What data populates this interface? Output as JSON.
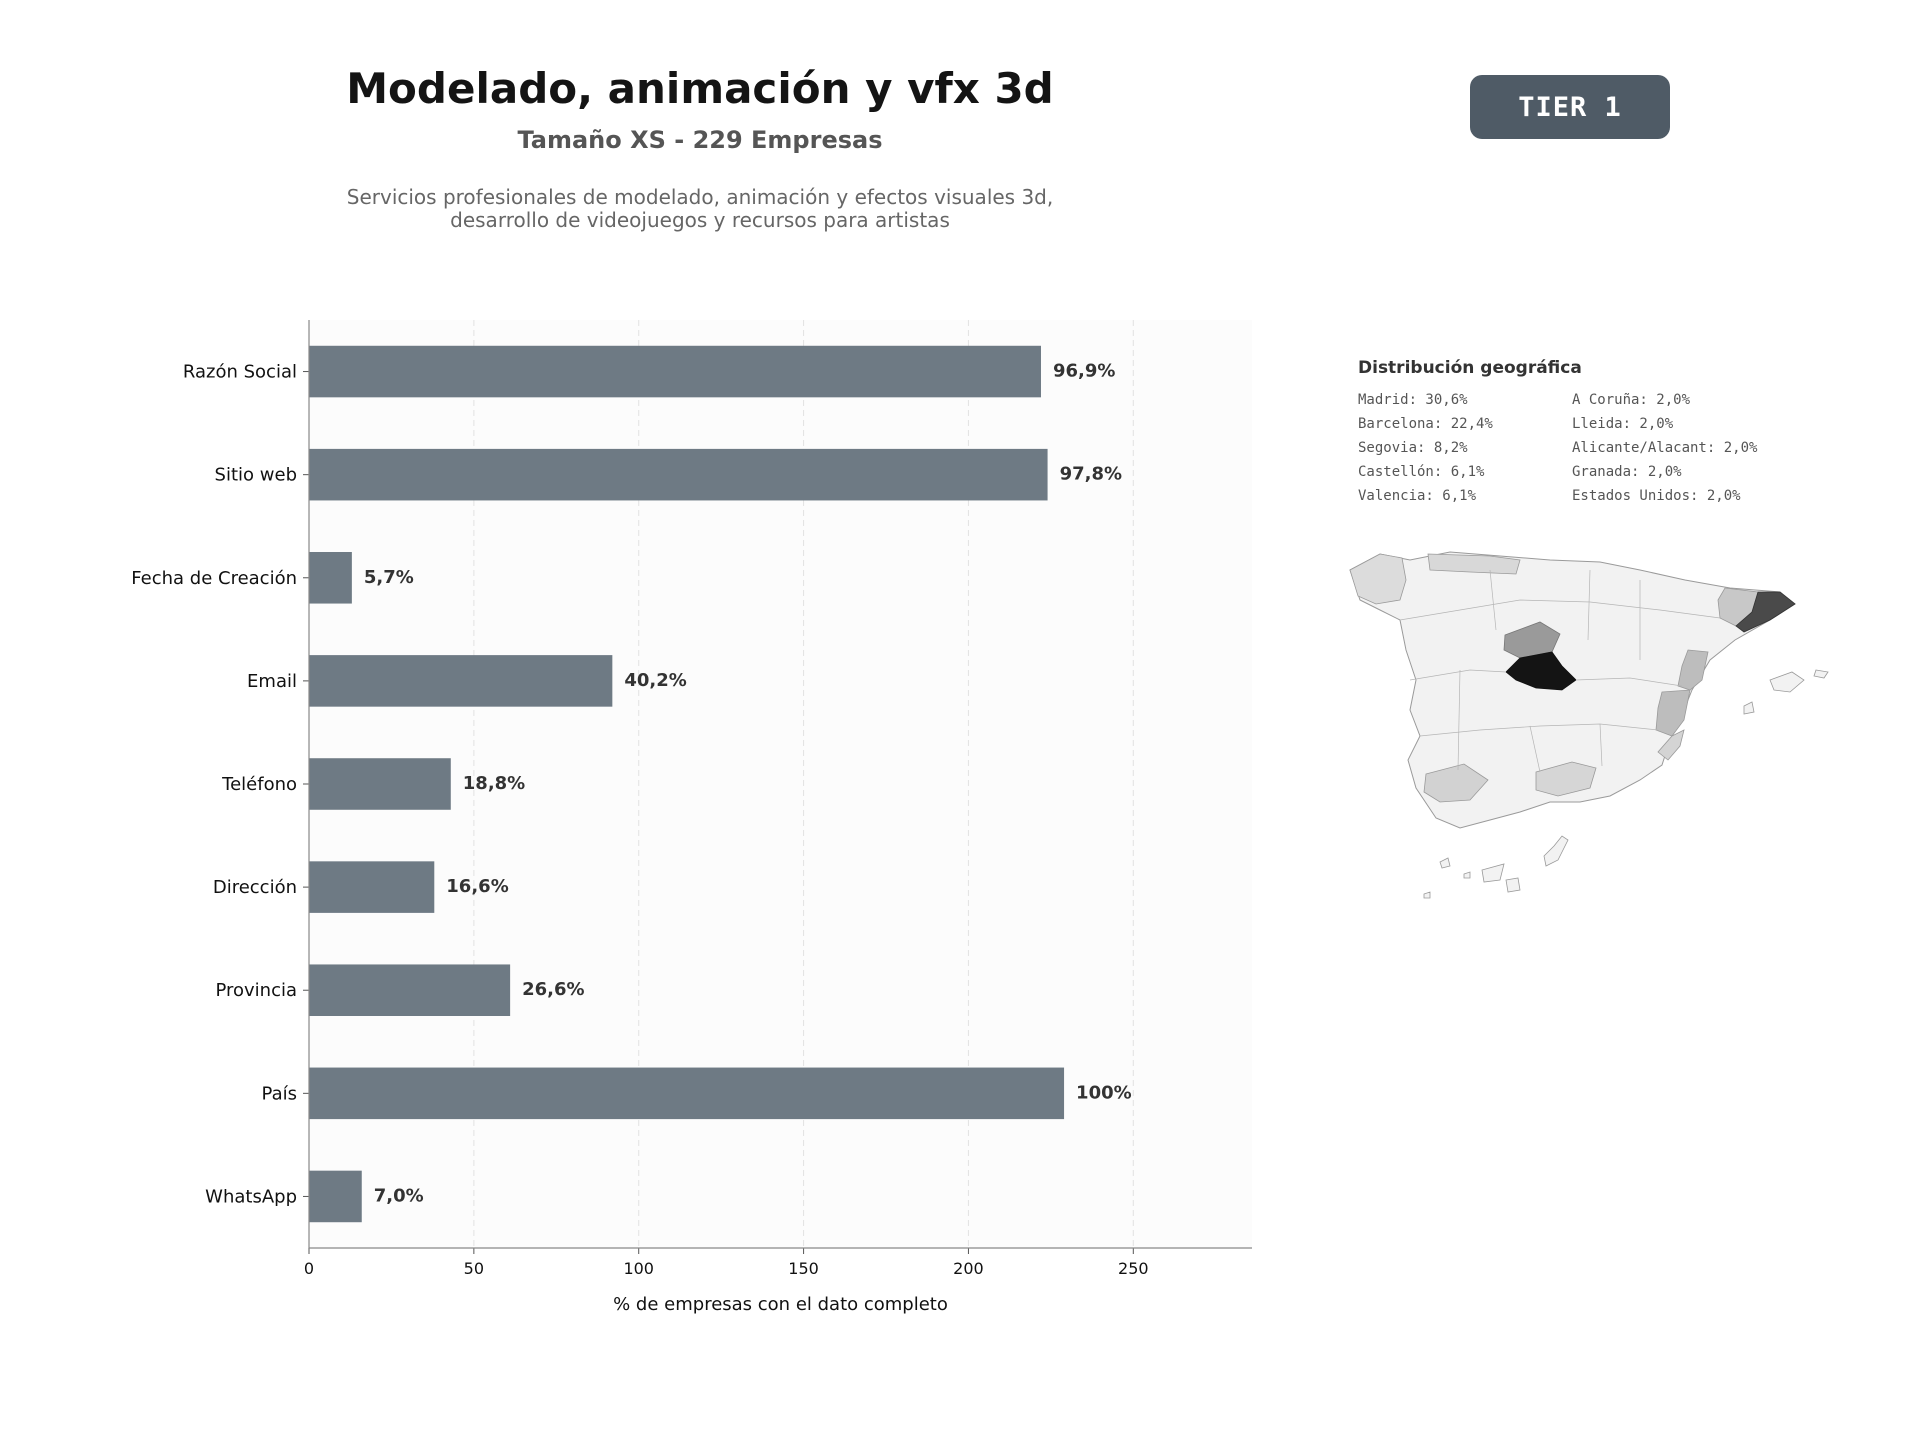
{
  "header": {
    "title": "Modelado, animación y vfx 3d",
    "subtitle": "Tamaño XS - 229 Empresas",
    "description": [
      "Servicios profesionales de modelado, animación y efectos visuales 3d,",
      "desarrollo de videojuegos y recursos para artistas"
    ],
    "tier_label": "TIER 1"
  },
  "chart_data": {
    "type": "bar",
    "orientation": "horizontal",
    "categories": [
      "Razón Social",
      "Sitio web",
      "Fecha de Creación",
      "Email",
      "Teléfono",
      "Dirección",
      "Provincia",
      "País",
      "WhatsApp"
    ],
    "values": [
      222,
      224,
      13,
      92,
      43,
      38,
      61,
      229,
      16
    ],
    "labels": [
      "96,9%",
      "97,8%",
      "5,7%",
      "40,2%",
      "18,8%",
      "16,6%",
      "26,6%",
      "100%",
      "7,0%"
    ],
    "xlabel": "% de empresas con el dato completo",
    "ylabel": "",
    "xlim": [
      0,
      286
    ],
    "xticks": [
      0,
      50,
      100,
      150,
      200,
      250
    ],
    "grid": "vertical-dashed",
    "bar_color": "#6e7a84"
  },
  "geo": {
    "title": "Distribución geográfica",
    "items": [
      "Madrid: 30,6%",
      "A Coruña: 2,0%",
      "Barcelona: 22,4%",
      "Lleida: 2,0%",
      "Segovia: 8,2%",
      "Alicante/Alacant: 2,0%",
      "Castellón: 6,1%",
      "Granada: 2,0%",
      "Valencia: 6,1%",
      "Estados Unidos: 2,0%"
    ]
  }
}
